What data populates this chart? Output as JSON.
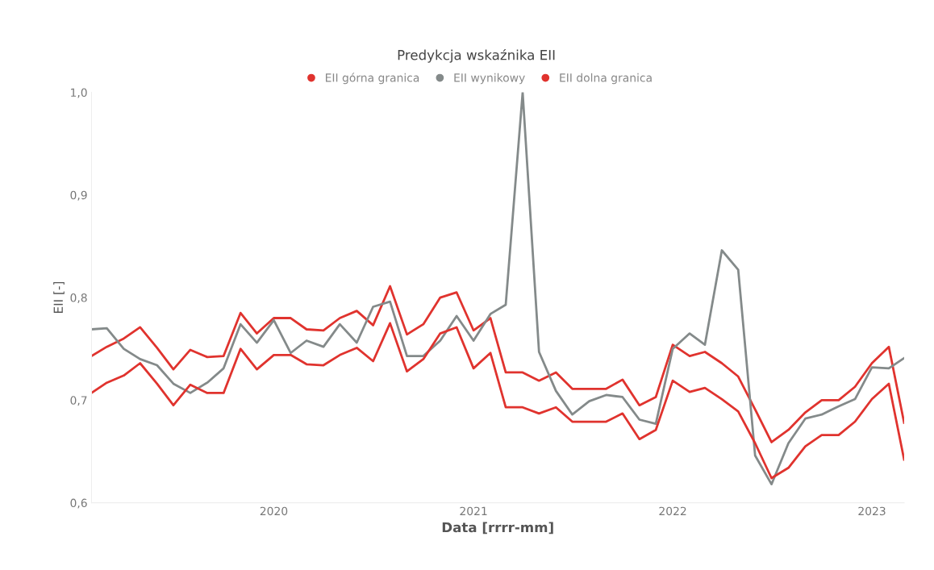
{
  "chart_data": {
    "type": "line",
    "title": "Predykcja wskaźnika EII",
    "xlabel": "Data [rrrr-mm]",
    "ylabel": "EII [-]",
    "x": [
      "2019-02",
      "2019-03",
      "2019-04",
      "2019-05",
      "2019-06",
      "2019-07",
      "2019-08",
      "2019-09",
      "2019-10",
      "2019-11",
      "2019-12",
      "2020-01",
      "2020-02",
      "2020-03",
      "2020-04",
      "2020-05",
      "2020-06",
      "2020-07",
      "2020-08",
      "2020-09",
      "2020-10",
      "2020-11",
      "2020-12",
      "2021-01",
      "2021-02",
      "2021-03",
      "2021-04",
      "2021-05",
      "2021-06",
      "2021-07",
      "2021-08",
      "2021-09",
      "2021-10",
      "2021-11",
      "2021-12",
      "2022-01",
      "2022-02",
      "2022-03",
      "2022-04",
      "2022-05",
      "2022-06",
      "2022-07",
      "2022-08",
      "2022-09",
      "2022-10",
      "2022-11",
      "2022-12",
      "2023-01",
      "2023-02",
      "2023-03"
    ],
    "series": [
      {
        "name": "EII górna granica",
        "color": "#e0332e",
        "values": [
          0.743,
          0.752,
          0.76,
          0.771,
          0.751,
          0.73,
          0.749,
          0.742,
          0.743,
          0.785,
          0.765,
          0.78,
          0.78,
          0.769,
          0.768,
          0.78,
          0.787,
          0.773,
          0.811,
          0.764,
          0.774,
          0.8,
          0.805,
          0.768,
          0.78,
          0.727,
          0.727,
          0.719,
          0.727,
          0.711,
          0.711,
          0.711,
          0.72,
          0.695,
          0.703,
          0.754,
          0.743,
          0.747,
          0.736,
          0.723,
          0.691,
          0.659,
          0.671,
          0.688,
          0.7,
          0.7,
          0.713,
          0.736,
          0.752,
          0.678
        ]
      },
      {
        "name": "EII wynikowy",
        "color": "#848a8a",
        "values": [
          0.769,
          0.77,
          0.75,
          0.74,
          0.734,
          0.716,
          0.707,
          0.717,
          0.731,
          0.774,
          0.756,
          0.778,
          0.746,
          0.758,
          0.752,
          0.774,
          0.756,
          0.791,
          0.796,
          0.743,
          0.743,
          0.758,
          0.782,
          0.758,
          0.784,
          0.793,
          1.0,
          0.747,
          0.709,
          0.686,
          0.699,
          0.705,
          0.703,
          0.681,
          0.677,
          0.75,
          0.765,
          0.754,
          0.846,
          0.827,
          0.646,
          0.618,
          0.658,
          0.682,
          0.686,
          0.694,
          0.701,
          0.732,
          0.731,
          0.741
        ]
      },
      {
        "name": "EII dolna granica",
        "color": "#e0332e",
        "values": [
          0.707,
          0.717,
          0.724,
          0.736,
          0.716,
          0.695,
          0.715,
          0.707,
          0.707,
          0.75,
          0.73,
          0.744,
          0.744,
          0.735,
          0.734,
          0.744,
          0.751,
          0.738,
          0.775,
          0.728,
          0.74,
          0.765,
          0.771,
          0.731,
          0.746,
          0.693,
          0.693,
          0.687,
          0.693,
          0.679,
          0.679,
          0.679,
          0.687,
          0.662,
          0.671,
          0.719,
          0.708,
          0.712,
          0.701,
          0.689,
          0.658,
          0.624,
          0.634,
          0.655,
          0.666,
          0.666,
          0.679,
          0.701,
          0.716,
          0.642
        ]
      }
    ],
    "xlim": [
      "2019-02",
      "2023-03"
    ],
    "xticks": [
      "2020",
      "2021",
      "2022",
      "2023"
    ],
    "ylim": [
      0.6,
      1.0
    ],
    "yticks": [
      {
        "value": 0.6,
        "label": "0,6"
      },
      {
        "value": 0.7,
        "label": "0,7"
      },
      {
        "value": 0.8,
        "label": "0,8"
      },
      {
        "value": 0.9,
        "label": "0,9"
      },
      {
        "value": 1.0,
        "label": "1,0"
      }
    ],
    "legend": "top",
    "grid": false,
    "marker": "none",
    "line_style": "solid"
  }
}
